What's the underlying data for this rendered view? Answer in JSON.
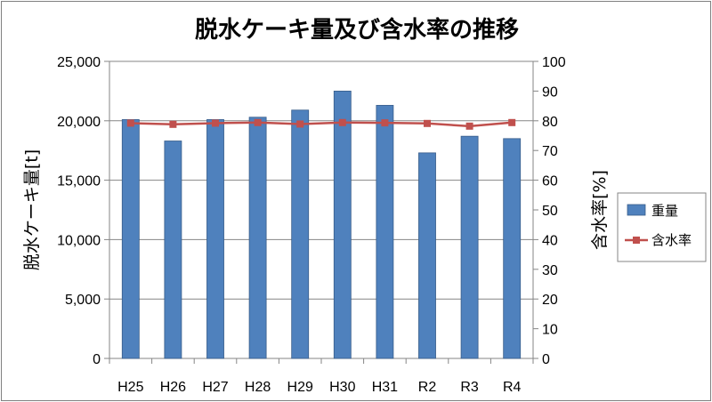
{
  "chart_data": {
    "type": "bar+line",
    "title": "脱水ケーキ量及び含水率の推移",
    "categories": [
      "H25",
      "H26",
      "H27",
      "H28",
      "H29",
      "H30",
      "H31",
      "R2",
      "R3",
      "R4"
    ],
    "series": [
      {
        "name": "重量",
        "type": "bar",
        "axis": "left",
        "color": "#4f81bd",
        "values": [
          20100,
          18300,
          20100,
          20300,
          20900,
          22500,
          21300,
          17300,
          18700,
          18500
        ]
      },
      {
        "name": "含水率",
        "type": "line",
        "axis": "right",
        "color": "#c0504d",
        "values": [
          79.2,
          78.8,
          79.2,
          79.4,
          78.9,
          79.4,
          79.3,
          79.1,
          78.2,
          79.4
        ]
      }
    ],
    "ylabel_left": "脱水ケーキ量[t]",
    "ylabel_right": "含水率[%]",
    "ylim_left": [
      0,
      25000
    ],
    "ylim_right": [
      0,
      100
    ],
    "yticks_left": [
      "0",
      "5,000",
      "10,000",
      "15,000",
      "20,000",
      "25,000"
    ],
    "yticks_right": [
      "0",
      "10",
      "20",
      "30",
      "40",
      "50",
      "60",
      "70",
      "80",
      "90",
      "100"
    ],
    "grid": true,
    "legend": "right"
  }
}
